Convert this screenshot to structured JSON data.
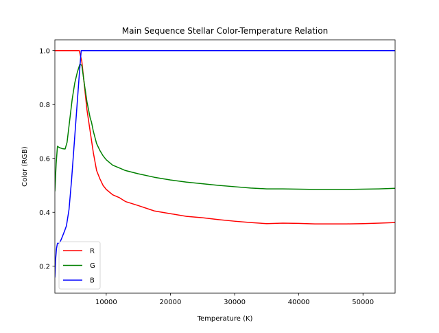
{
  "chart_data": {
    "type": "line",
    "title": "Main Sequence Stellar Color-Temperature Relation",
    "xlabel": "Temperature (K)",
    "ylabel": "Color (RGB)",
    "xlim": [
      2000,
      55000
    ],
    "ylim": [
      0.1,
      1.04
    ],
    "x_ticks": [
      10000,
      20000,
      30000,
      40000,
      50000
    ],
    "x_tick_labels": [
      "10000",
      "20000",
      "30000",
      "40000",
      "50000"
    ],
    "y_ticks": [
      0.2,
      0.4,
      0.6,
      0.8,
      1.0
    ],
    "y_tick_labels": [
      "0.2",
      "0.4",
      "0.6",
      "0.8",
      "1.0"
    ],
    "grid": false,
    "legend_position": "lower-left",
    "series": [
      {
        "name": "R",
        "color": "#ff0000",
        "points": [
          [
            2000,
            1.0
          ],
          [
            3000,
            1.0
          ],
          [
            4000,
            1.0
          ],
          [
            5000,
            1.0
          ],
          [
            5800,
            1.0
          ],
          [
            6200,
            0.96
          ],
          [
            6600,
            0.87
          ],
          [
            7000,
            0.78
          ],
          [
            7500,
            0.7
          ],
          [
            8000,
            0.62
          ],
          [
            8500,
            0.555
          ],
          [
            9000,
            0.525
          ],
          [
            9500,
            0.5
          ],
          [
            10000,
            0.485
          ],
          [
            11000,
            0.465
          ],
          [
            12000,
            0.455
          ],
          [
            13000,
            0.44
          ],
          [
            15000,
            0.425
          ],
          [
            17500,
            0.405
          ],
          [
            20000,
            0.395
          ],
          [
            22500,
            0.385
          ],
          [
            25000,
            0.38
          ],
          [
            27500,
            0.373
          ],
          [
            30000,
            0.367
          ],
          [
            32500,
            0.362
          ],
          [
            35000,
            0.358
          ],
          [
            37500,
            0.36
          ],
          [
            40000,
            0.359
          ],
          [
            42500,
            0.357
          ],
          [
            45000,
            0.357
          ],
          [
            47500,
            0.357
          ],
          [
            50000,
            0.358
          ],
          [
            52500,
            0.36
          ],
          [
            55000,
            0.362
          ]
        ]
      },
      {
        "name": "G",
        "color": "#008000",
        "points": [
          [
            2000,
            0.48
          ],
          [
            2200,
            0.58
          ],
          [
            2400,
            0.645
          ],
          [
            2700,
            0.64
          ],
          [
            3200,
            0.636
          ],
          [
            3600,
            0.635
          ],
          [
            3900,
            0.66
          ],
          [
            4300,
            0.74
          ],
          [
            4700,
            0.82
          ],
          [
            5100,
            0.88
          ],
          [
            5500,
            0.92
          ],
          [
            5900,
            0.95
          ],
          [
            6200,
            0.945
          ],
          [
            6600,
            0.875
          ],
          [
            7000,
            0.81
          ],
          [
            7500,
            0.75
          ],
          [
            7700,
            0.735
          ],
          [
            8000,
            0.7
          ],
          [
            8500,
            0.655
          ],
          [
            9000,
            0.63
          ],
          [
            9500,
            0.61
          ],
          [
            10000,
            0.595
          ],
          [
            11000,
            0.575
          ],
          [
            12000,
            0.565
          ],
          [
            13000,
            0.555
          ],
          [
            15000,
            0.543
          ],
          [
            17500,
            0.53
          ],
          [
            20000,
            0.52
          ],
          [
            22500,
            0.512
          ],
          [
            25000,
            0.506
          ],
          [
            27500,
            0.5
          ],
          [
            30000,
            0.495
          ],
          [
            32500,
            0.49
          ],
          [
            35000,
            0.487
          ],
          [
            37500,
            0.487
          ],
          [
            40000,
            0.486
          ],
          [
            42500,
            0.485
          ],
          [
            45000,
            0.485
          ],
          [
            47500,
            0.485
          ],
          [
            50000,
            0.486
          ],
          [
            52500,
            0.487
          ],
          [
            55000,
            0.489
          ]
        ]
      },
      {
        "name": "B",
        "color": "#0000ff",
        "points": [
          [
            2000,
            0.16
          ],
          [
            2100,
            0.22
          ],
          [
            2250,
            0.265
          ],
          [
            2400,
            0.285
          ],
          [
            2700,
            0.285
          ],
          [
            3000,
            0.3
          ],
          [
            3500,
            0.33
          ],
          [
            3800,
            0.35
          ],
          [
            4200,
            0.41
          ],
          [
            4600,
            0.52
          ],
          [
            5000,
            0.65
          ],
          [
            5400,
            0.78
          ],
          [
            5800,
            0.91
          ],
          [
            6000,
            0.97
          ],
          [
            6100,
            1.0
          ],
          [
            7000,
            1.0
          ],
          [
            10000,
            1.0
          ],
          [
            20000,
            1.0
          ],
          [
            30000,
            1.0
          ],
          [
            40000,
            1.0
          ],
          [
            50000,
            1.0
          ],
          [
            55000,
            1.0
          ]
        ]
      }
    ]
  }
}
